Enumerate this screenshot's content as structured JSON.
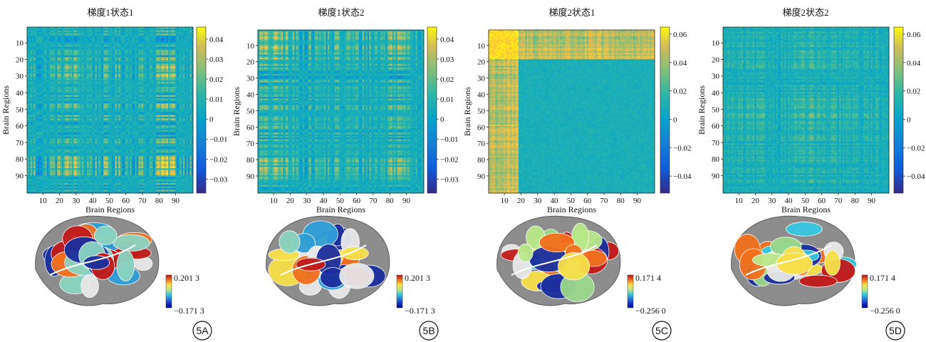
{
  "chart_data": [
    {
      "type": "heatmap",
      "title": "梯度1状态1",
      "xlabel": "Brain Regions",
      "ylabel": "Brain Regions",
      "xticks": [
        "10",
        "20",
        "30",
        "40",
        "50",
        "60",
        "70",
        "80",
        "90"
      ],
      "yticks": [
        "10",
        "20",
        "30",
        "40",
        "50",
        "60",
        "70",
        "80",
        "90"
      ],
      "colorbar_ticks": [
        "0.04",
        "0.03",
        "0.02",
        "0.01",
        "0",
        "−0.01",
        "−0.02",
        "−0.03"
      ],
      "colorbar_values": [
        0.04,
        0.03,
        0.02,
        0.01,
        0,
        -0.01,
        -0.02,
        -0.03
      ],
      "clim": [
        -0.037,
        0.046
      ],
      "n_regions": 100,
      "brain_map": {
        "max_label": "0.201 3",
        "min_label": "−0.171 3"
      },
      "panel_label": "5A"
    },
    {
      "type": "heatmap",
      "title": "梯度1状态2",
      "xlabel": "Brain Regions",
      "ylabel": "Brain Regions",
      "xticks": [
        "10",
        "20",
        "30",
        "40",
        "50",
        "60",
        "70",
        "80",
        "90"
      ],
      "yticks": [
        "10",
        "20",
        "30",
        "40",
        "50",
        "60",
        "70",
        "80",
        "90"
      ],
      "colorbar_ticks": [
        "0.04",
        "0.03",
        "0.02",
        "0.01",
        "0",
        "−0.01",
        "−0.02",
        "−0.03"
      ],
      "colorbar_values": [
        0.04,
        0.03,
        0.02,
        0.01,
        0,
        -0.01,
        -0.02,
        -0.03
      ],
      "clim": [
        -0.037,
        0.046
      ],
      "n_regions": 100,
      "brain_map": {
        "max_label": "0.201 3",
        "min_label": "−0.171 3"
      },
      "panel_label": "5B"
    },
    {
      "type": "heatmap",
      "title": "梯度2状态1",
      "xlabel": "Brain Regions",
      "ylabel": "Brain Regions",
      "xticks": [
        "10",
        "20",
        "30",
        "40",
        "50",
        "60",
        "70",
        "80",
        "90"
      ],
      "yticks": [
        "10",
        "20",
        "30",
        "40",
        "50",
        "60",
        "70",
        "80",
        "90"
      ],
      "colorbar_ticks": [
        "0.06",
        "0.04",
        "0.02",
        "0",
        "−0.02",
        "−0.04"
      ],
      "colorbar_values": [
        0.06,
        0.04,
        0.02,
        0,
        -0.02,
        -0.04
      ],
      "clim": [
        -0.052,
        0.065
      ],
      "n_regions": 100,
      "brain_map": {
        "max_label": "0.171 4",
        "min_label": "−0.256 0"
      },
      "panel_label": "5C"
    },
    {
      "type": "heatmap",
      "title": "梯度2状态2",
      "xlabel": "Brain Regions",
      "ylabel": "Brain Regions",
      "xticks": [
        "10",
        "20",
        "30",
        "40",
        "50",
        "60",
        "70",
        "80",
        "90"
      ],
      "yticks": [
        "10",
        "20",
        "30",
        "40",
        "50",
        "60",
        "70",
        "80",
        "90"
      ],
      "colorbar_ticks": [
        "0.06",
        "0.04",
        "0.02",
        "0",
        "−0.02",
        "−0.04"
      ],
      "colorbar_values": [
        0.06,
        0.04,
        0.02,
        0,
        -0.02,
        -0.04
      ],
      "clim": [
        -0.052,
        0.065
      ],
      "n_regions": 100,
      "brain_map": {
        "max_label": "0.171 4",
        "min_label": "−0.256 0"
      },
      "panel_label": "5D"
    }
  ]
}
